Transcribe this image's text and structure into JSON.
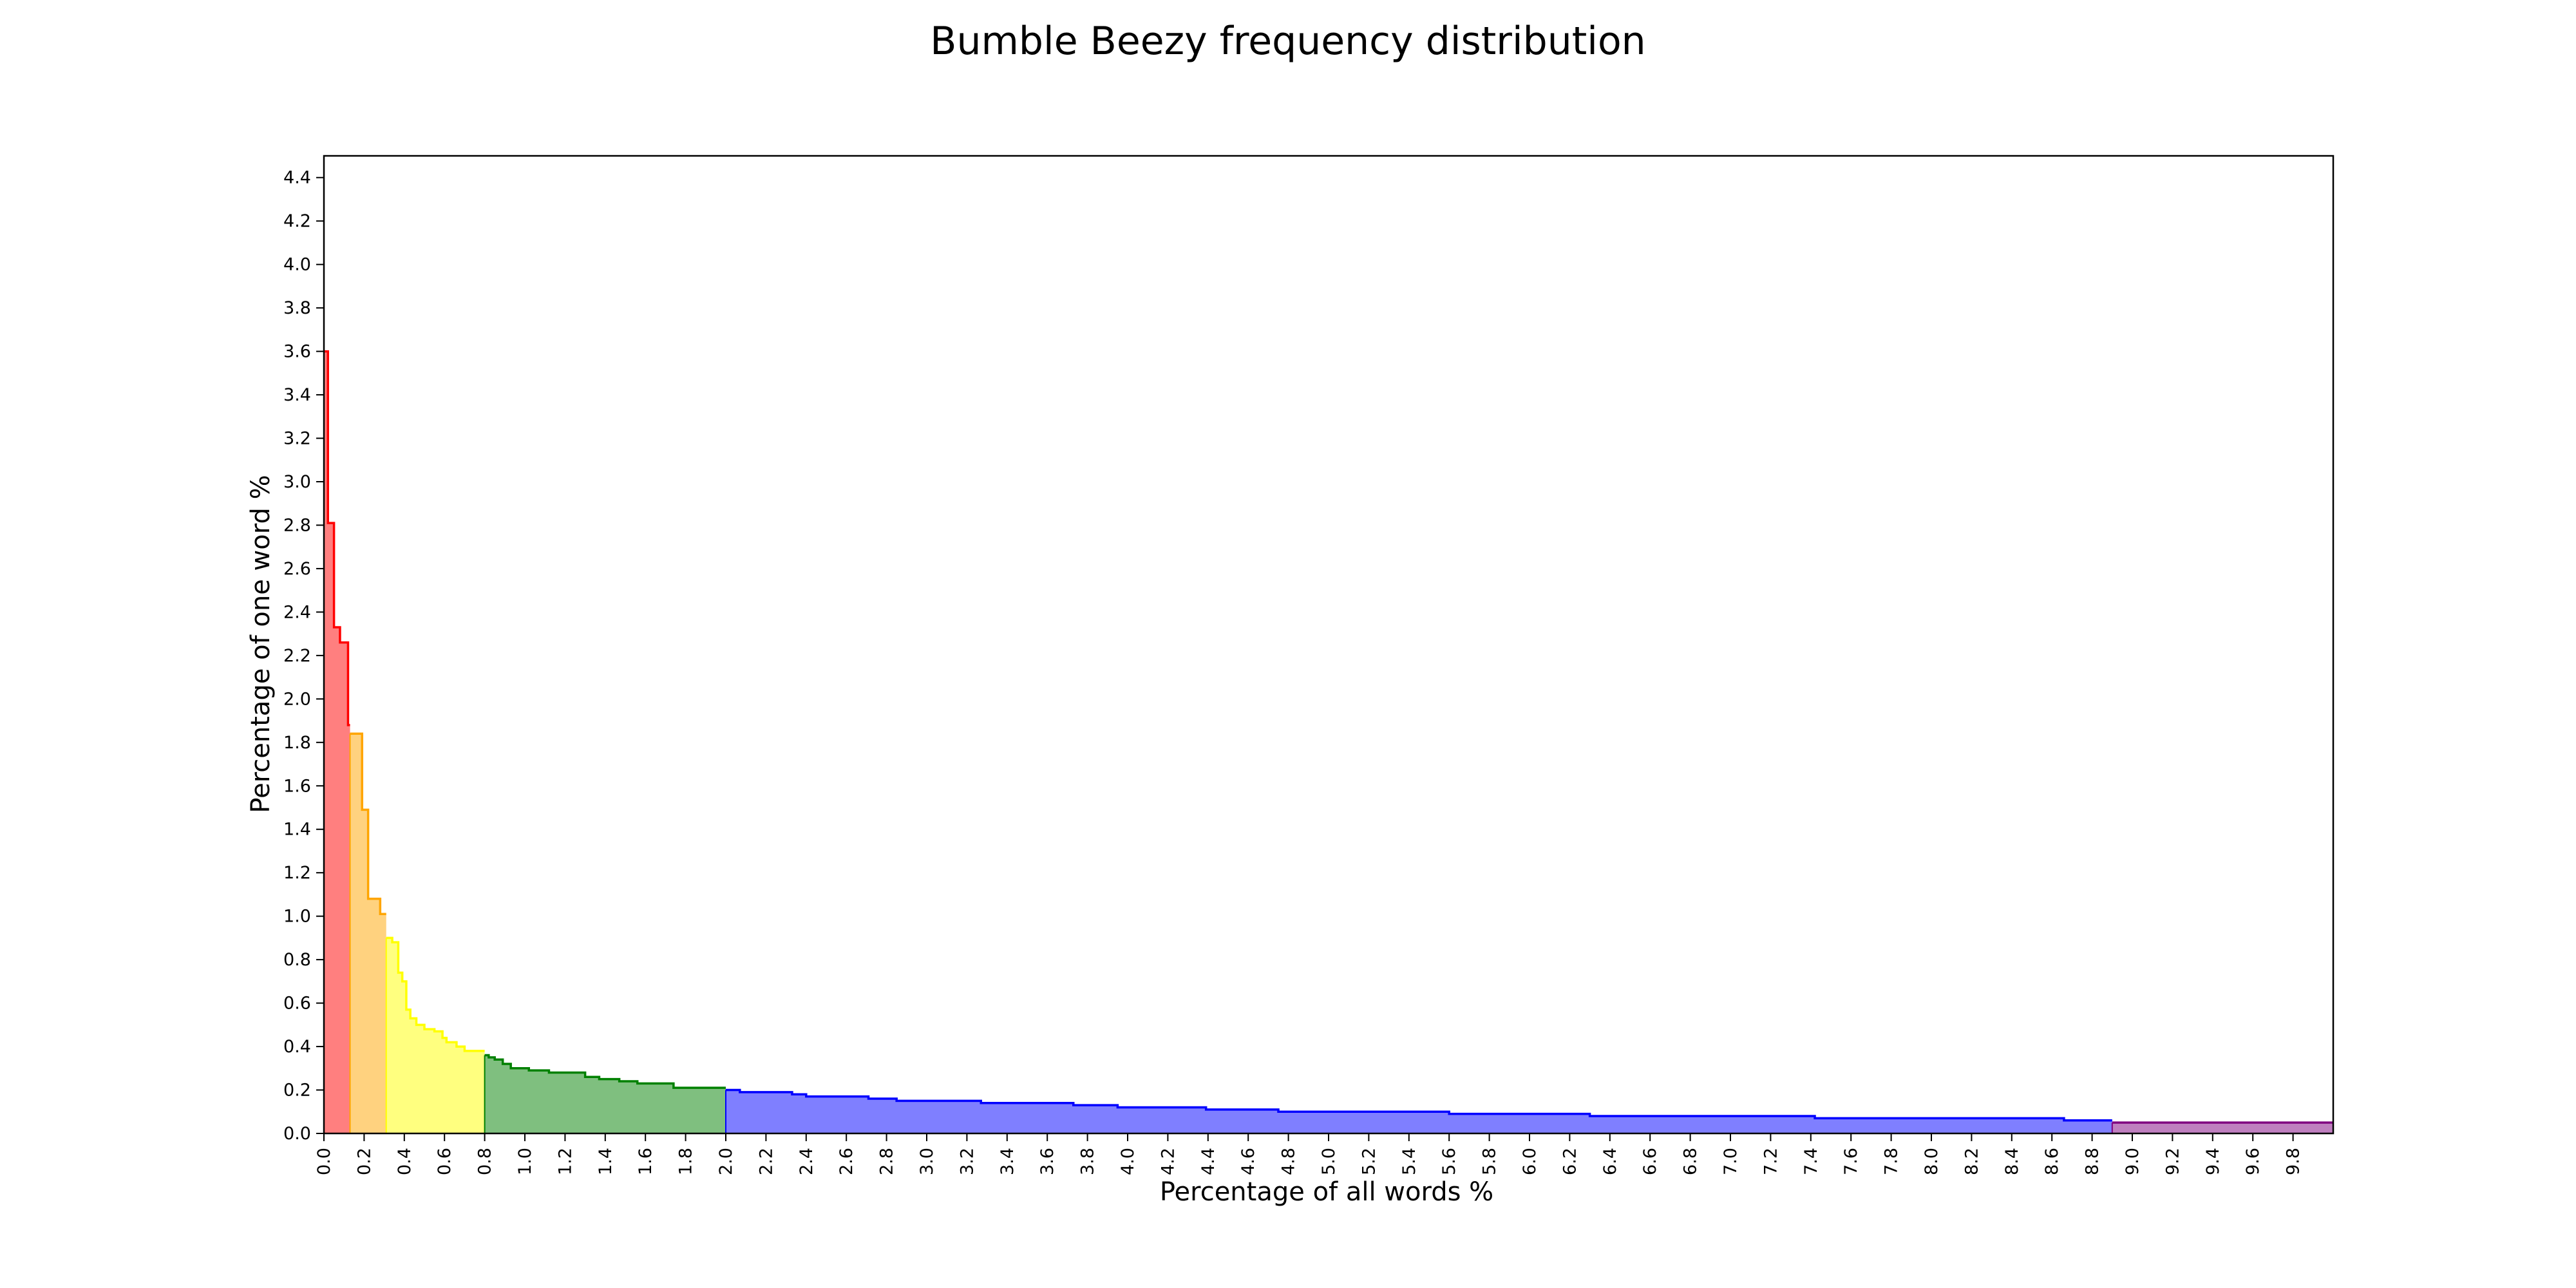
{
  "chart_data": {
    "type": "area",
    "title": "Bumble Beezy frequency distribution",
    "xlabel": "Percentage of all words %",
    "ylabel": "Percentage of one word %",
    "xlim": [
      0,
      10
    ],
    "ylim": [
      0,
      4.5
    ],
    "xticks": [
      "0.0",
      "0.2",
      "0.4",
      "0.6",
      "0.8",
      "1.0",
      "1.2",
      "1.4",
      "1.6",
      "1.8",
      "2.0",
      "2.2",
      "2.4",
      "2.6",
      "2.8",
      "3.0",
      "3.2",
      "3.4",
      "3.6",
      "3.8",
      "4.0",
      "4.2",
      "4.4",
      "4.6",
      "4.8",
      "5.0",
      "5.2",
      "5.4",
      "5.6",
      "5.8",
      "6.0",
      "6.2",
      "6.4",
      "6.6",
      "6.8",
      "7.0",
      "7.2",
      "7.4",
      "7.6",
      "7.8",
      "8.0",
      "8.2",
      "8.4",
      "8.6",
      "8.8",
      "9.0",
      "9.2",
      "9.4",
      "9.6",
      "9.8"
    ],
    "yticks": [
      "0.0",
      "0.2",
      "0.4",
      "0.6",
      "0.8",
      "1.0",
      "1.2",
      "1.4",
      "1.6",
      "1.8",
      "2.0",
      "2.2",
      "2.4",
      "2.6",
      "2.8",
      "3.0",
      "3.2",
      "3.4",
      "3.6",
      "3.8",
      "4.0",
      "4.2",
      "4.4"
    ],
    "grid": false,
    "step": true,
    "series": [
      {
        "color": "#ff0000",
        "points": [
          [
            0.0,
            3.6
          ],
          [
            0.02,
            2.81
          ],
          [
            0.05,
            2.33
          ],
          [
            0.08,
            2.26
          ],
          [
            0.12,
            1.88
          ],
          [
            0.13,
            1.88
          ]
        ]
      },
      {
        "color": "#ffa500",
        "points": [
          [
            0.13,
            1.84
          ],
          [
            0.19,
            1.49
          ],
          [
            0.22,
            1.08
          ],
          [
            0.28,
            1.01
          ],
          [
            0.31,
            1.01
          ]
        ]
      },
      {
        "color": "#ffff00",
        "points": [
          [
            0.31,
            0.9
          ],
          [
            0.34,
            0.88
          ],
          [
            0.37,
            0.74
          ],
          [
            0.39,
            0.7
          ],
          [
            0.41,
            0.57
          ],
          [
            0.43,
            0.53
          ],
          [
            0.46,
            0.5
          ],
          [
            0.5,
            0.48
          ],
          [
            0.55,
            0.47
          ],
          [
            0.59,
            0.44
          ],
          [
            0.61,
            0.42
          ],
          [
            0.66,
            0.4
          ],
          [
            0.7,
            0.38
          ],
          [
            0.8,
            0.38
          ]
        ]
      },
      {
        "color": "#008000",
        "points": [
          [
            0.8,
            0.36
          ],
          [
            0.82,
            0.35
          ],
          [
            0.85,
            0.34
          ],
          [
            0.89,
            0.32
          ],
          [
            0.93,
            0.3
          ],
          [
            1.02,
            0.29
          ],
          [
            1.12,
            0.28
          ],
          [
            1.3,
            0.26
          ],
          [
            1.37,
            0.25
          ],
          [
            1.47,
            0.24
          ],
          [
            1.56,
            0.23
          ],
          [
            1.74,
            0.21
          ],
          [
            2.0,
            0.21
          ]
        ]
      },
      {
        "color": "#0000ff",
        "points": [
          [
            2.0,
            0.2
          ],
          [
            2.07,
            0.19
          ],
          [
            2.33,
            0.18
          ],
          [
            2.4,
            0.17
          ],
          [
            2.71,
            0.16
          ],
          [
            2.85,
            0.15
          ],
          [
            3.27,
            0.14
          ],
          [
            3.73,
            0.13
          ],
          [
            3.95,
            0.12
          ],
          [
            4.39,
            0.11
          ],
          [
            4.75,
            0.1
          ],
          [
            5.6,
            0.09
          ],
          [
            6.3,
            0.08
          ],
          [
            7.42,
            0.07
          ],
          [
            8.66,
            0.06
          ],
          [
            8.9,
            0.06
          ]
        ]
      },
      {
        "color": "#800080",
        "points": [
          [
            8.9,
            0.05
          ],
          [
            10.0,
            0.05
          ]
        ]
      }
    ]
  }
}
